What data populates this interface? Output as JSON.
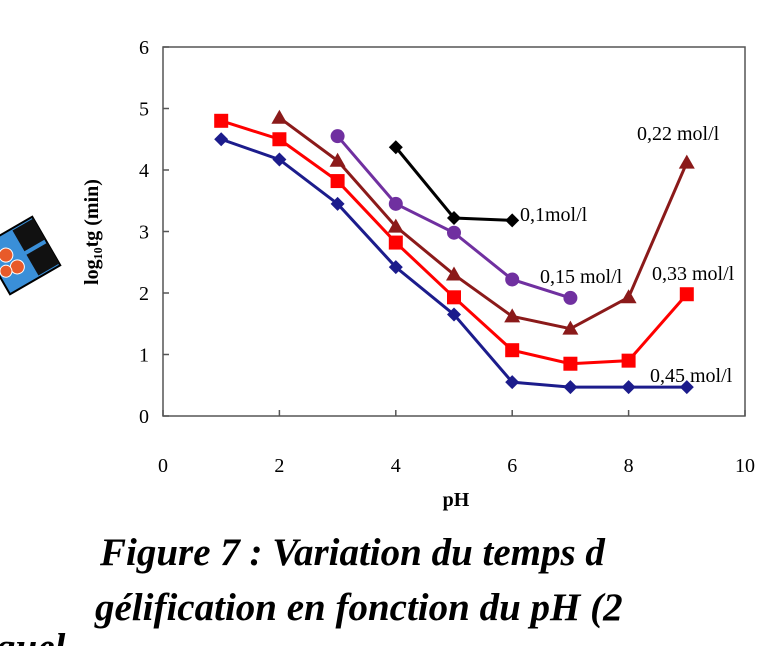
{
  "chart_data": {
    "type": "line",
    "xlabel": "pH",
    "ylabel": "log₁₀tg (min)",
    "x": [
      1,
      2,
      3,
      4,
      5,
      6,
      7,
      8,
      9
    ],
    "series": [
      {
        "name": "0,45 mol/l",
        "color": "#1c1c8c",
        "marker": "diamond",
        "values": [
          4.5,
          4.17,
          3.45,
          2.42,
          1.65,
          0.55,
          0.47,
          0.47,
          0.47
        ]
      },
      {
        "name": "0,33 mol/l",
        "color": "#ff0000",
        "marker": "square",
        "values": [
          4.8,
          4.5,
          3.82,
          2.82,
          1.93,
          1.07,
          0.85,
          0.9,
          1.98
        ]
      },
      {
        "name": "0,22 mol/l",
        "color": "#8b1a1a",
        "marker": "triangle",
        "values": [
          null,
          4.85,
          4.15,
          3.08,
          2.3,
          1.62,
          1.42,
          1.93,
          4.12
        ]
      },
      {
        "name": "0,15 mol/l",
        "color": "#7030a0",
        "marker": "circle",
        "values": [
          null,
          null,
          4.55,
          3.45,
          2.98,
          2.22,
          1.92,
          null,
          null
        ]
      },
      {
        "name": "0,1mol/l",
        "color": "#000000",
        "marker": "diamond",
        "values": [
          null,
          null,
          null,
          4.37,
          3.22,
          3.18,
          null,
          null,
          null
        ]
      }
    ],
    "xlim": [
      0,
      10
    ],
    "xticks": [
      0,
      2,
      4,
      6,
      8,
      10
    ],
    "ylim": [
      0,
      6
    ],
    "yticks": [
      0,
      1,
      2,
      3,
      4,
      5,
      6
    ]
  },
  "caption": {
    "line1": "Figure 7 : Variation du temps d",
    "line2": "gélification en fonction du pH (2",
    "fragment": "quel"
  }
}
